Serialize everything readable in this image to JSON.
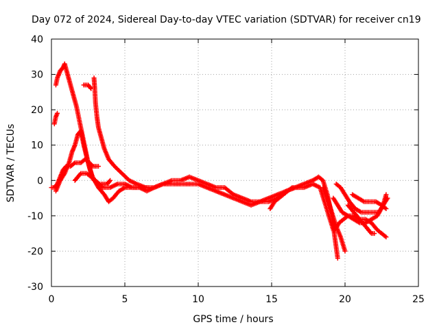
{
  "chart_data": {
    "type": "scatter",
    "title": "Day 072 of 2024, Sidereal Day-to-day VTEC variation (SDTVAR) for receiver cn19",
    "xlabel": "GPS time / hours",
    "ylabel": "SDTVAR / TECUs",
    "xlim": [
      0,
      25
    ],
    "ylim": [
      -30,
      40
    ],
    "xticks": [
      "0",
      "5",
      "10",
      "15",
      "20",
      "25"
    ],
    "yticks": [
      "40",
      "30",
      "20",
      "10",
      "0",
      "-10",
      "-20",
      "-30"
    ],
    "grid": true,
    "marker": "+",
    "color": "#ff0000",
    "series": [
      {
        "name": "trace1",
        "points": [
          [
            0.0,
            -2
          ],
          [
            0.2,
            -2
          ],
          [
            0.4,
            -1
          ],
          [
            0.6,
            1
          ],
          [
            0.8,
            3
          ],
          [
            1.0,
            4
          ],
          [
            1.3,
            4
          ],
          [
            1.6,
            5
          ],
          [
            2.0,
            5
          ],
          [
            2.3,
            6
          ],
          [
            2.6,
            5
          ],
          [
            2.8,
            4
          ],
          [
            3.0,
            4
          ],
          [
            3.2,
            4
          ]
        ]
      },
      {
        "name": "trace2",
        "points": [
          [
            0.3,
            27
          ],
          [
            0.4,
            29
          ],
          [
            0.6,
            31
          ],
          [
            0.8,
            32
          ],
          [
            0.9,
            33
          ],
          [
            1.1,
            30
          ],
          [
            1.3,
            27
          ],
          [
            1.5,
            24
          ],
          [
            1.7,
            21
          ],
          [
            1.9,
            17
          ],
          [
            2.1,
            13
          ],
          [
            2.3,
            9
          ],
          [
            2.5,
            5
          ],
          [
            2.7,
            2
          ],
          [
            2.9,
            0
          ],
          [
            3.2,
            -1
          ],
          [
            3.5,
            -1
          ],
          [
            3.8,
            -1
          ],
          [
            4.0,
            0
          ]
        ]
      },
      {
        "name": "trace3",
        "points": [
          [
            0.3,
            -3
          ],
          [
            0.6,
            0
          ],
          [
            0.9,
            2
          ],
          [
            1.2,
            5
          ],
          [
            1.4,
            8
          ],
          [
            1.6,
            10
          ],
          [
            1.8,
            13
          ],
          [
            2.0,
            14
          ],
          [
            2.2,
            10
          ],
          [
            2.5,
            5
          ],
          [
            2.8,
            1
          ],
          [
            3.2,
            -2
          ],
          [
            3.6,
            -4
          ],
          [
            3.9,
            -6
          ],
          [
            4.2,
            -5
          ],
          [
            4.6,
            -3
          ],
          [
            5.0,
            -2
          ],
          [
            5.5,
            -2
          ],
          [
            6.0,
            -2
          ],
          [
            6.5,
            -2
          ]
        ]
      },
      {
        "name": "trace4",
        "points": [
          [
            0.2,
            16
          ],
          [
            0.3,
            18
          ],
          [
            0.4,
            19
          ]
        ]
      },
      {
        "name": "trace5",
        "points": [
          [
            2.2,
            27
          ],
          [
            2.5,
            27
          ],
          [
            2.7,
            26
          ]
        ]
      },
      {
        "name": "trace6",
        "points": [
          [
            2.9,
            29
          ],
          [
            2.95,
            26
          ],
          [
            3.0,
            22
          ],
          [
            3.1,
            18
          ],
          [
            3.2,
            15
          ],
          [
            3.4,
            12
          ],
          [
            3.6,
            9
          ],
          [
            3.9,
            6
          ],
          [
            4.3,
            4
          ],
          [
            4.8,
            2
          ],
          [
            5.3,
            0
          ],
          [
            5.8,
            -1
          ],
          [
            6.4,
            -2
          ],
          [
            7.0,
            -2
          ],
          [
            7.6,
            -1
          ],
          [
            8.2,
            0
          ],
          [
            8.8,
            0
          ],
          [
            9.4,
            1
          ],
          [
            10.0,
            0
          ],
          [
            10.6,
            -1
          ],
          [
            11.2,
            -2
          ],
          [
            11.8,
            -2
          ],
          [
            12.4,
            -4
          ],
          [
            13.0,
            -5
          ],
          [
            13.6,
            -6
          ],
          [
            14.2,
            -6
          ],
          [
            14.8,
            -5
          ],
          [
            15.4,
            -4
          ],
          [
            16.0,
            -3
          ],
          [
            16.6,
            -2
          ],
          [
            17.2,
            -1
          ],
          [
            17.8,
            0
          ],
          [
            18.2,
            1
          ],
          [
            18.5,
            0
          ],
          [
            18.8,
            -4
          ],
          [
            19.1,
            -10
          ],
          [
            19.3,
            -16
          ],
          [
            19.5,
            -22
          ]
        ]
      },
      {
        "name": "trace7",
        "points": [
          [
            1.6,
            0
          ],
          [
            2.0,
            2
          ],
          [
            2.4,
            2
          ],
          [
            2.7,
            1
          ],
          [
            3.0,
            0
          ],
          [
            3.5,
            -2
          ],
          [
            4.0,
            -2
          ],
          [
            4.5,
            -1
          ],
          [
            5.0,
            -1
          ],
          [
            5.5,
            -2
          ],
          [
            6.0,
            -2
          ],
          [
            6.5,
            -3
          ],
          [
            7.0,
            -2
          ],
          [
            7.6,
            -1
          ],
          [
            8.2,
            -1
          ],
          [
            8.8,
            -1
          ],
          [
            9.4,
            -1
          ],
          [
            10.0,
            -1
          ],
          [
            10.6,
            -2
          ],
          [
            11.2,
            -3
          ],
          [
            11.8,
            -4
          ],
          [
            12.4,
            -5
          ],
          [
            13.0,
            -6
          ],
          [
            13.6,
            -7
          ],
          [
            14.2,
            -6
          ],
          [
            14.8,
            -6
          ],
          [
            15.4,
            -5
          ],
          [
            16.0,
            -3
          ],
          [
            16.6,
            -2
          ],
          [
            17.2,
            -2
          ],
          [
            17.8,
            -1
          ],
          [
            18.3,
            -2
          ],
          [
            18.6,
            -6
          ],
          [
            18.9,
            -10
          ],
          [
            19.2,
            -14
          ]
        ]
      },
      {
        "name": "trace8",
        "points": [
          [
            14.9,
            -8
          ],
          [
            15.2,
            -6
          ],
          [
            15.5,
            -5
          ],
          [
            15.8,
            -4
          ],
          [
            16.1,
            -3
          ],
          [
            16.4,
            -2
          ],
          [
            16.8,
            -2
          ]
        ]
      },
      {
        "name": "trace9",
        "points": [
          [
            19.3,
            -14
          ],
          [
            19.6,
            -12
          ],
          [
            19.9,
            -11
          ],
          [
            20.2,
            -10
          ],
          [
            20.6,
            -11
          ],
          [
            21.0,
            -12
          ],
          [
            21.4,
            -12
          ],
          [
            21.8,
            -11
          ],
          [
            22.2,
            -10
          ],
          [
            22.6,
            -7
          ],
          [
            22.9,
            -5
          ]
        ]
      },
      {
        "name": "trace10",
        "points": [
          [
            18.5,
            -2
          ],
          [
            18.8,
            -5
          ],
          [
            19.1,
            -9
          ],
          [
            19.4,
            -13
          ],
          [
            19.7,
            -16
          ],
          [
            20.0,
            -20
          ]
        ]
      },
      {
        "name": "trace11",
        "points": [
          [
            19.4,
            -1
          ],
          [
            19.7,
            -2
          ],
          [
            20.0,
            -4
          ],
          [
            20.3,
            -6
          ],
          [
            20.7,
            -8
          ],
          [
            21.1,
            -9
          ],
          [
            21.5,
            -9
          ],
          [
            21.9,
            -9
          ],
          [
            22.3,
            -9
          ],
          [
            22.6,
            -7
          ],
          [
            22.8,
            -4
          ]
        ]
      },
      {
        "name": "trace12",
        "points": [
          [
            19.2,
            -5
          ],
          [
            19.5,
            -7
          ],
          [
            19.8,
            -9
          ],
          [
            20.2,
            -10
          ],
          [
            20.6,
            -10
          ],
          [
            21.0,
            -11
          ],
          [
            21.4,
            -11
          ],
          [
            21.8,
            -12
          ],
          [
            22.2,
            -14
          ],
          [
            22.5,
            -15
          ],
          [
            22.8,
            -16
          ]
        ]
      },
      {
        "name": "trace13",
        "points": [
          [
            20.5,
            -4
          ],
          [
            20.9,
            -5
          ],
          [
            21.3,
            -6
          ],
          [
            21.7,
            -6
          ],
          [
            22.1,
            -6
          ],
          [
            22.5,
            -7
          ],
          [
            22.8,
            -8
          ]
        ]
      },
      {
        "name": "trace14",
        "points": [
          [
            20.2,
            -7
          ],
          [
            20.6,
            -9
          ],
          [
            21.0,
            -11
          ],
          [
            21.4,
            -13
          ],
          [
            21.8,
            -15
          ],
          [
            22.0,
            -15
          ]
        ]
      }
    ]
  }
}
